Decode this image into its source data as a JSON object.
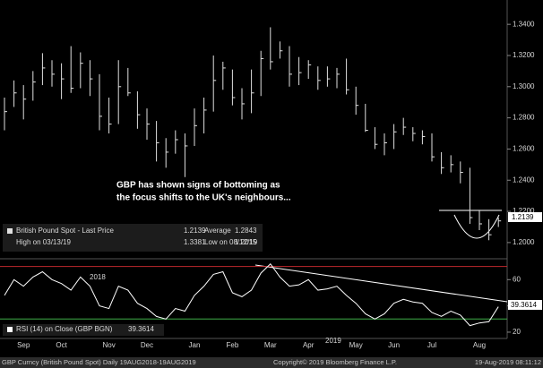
{
  "chart_data": [
    {
      "type": "ohlc",
      "categories": [
        null,
        null,
        "Sep",
        null,
        null,
        null,
        "Oct",
        null,
        null,
        null,
        null,
        "Nov",
        null,
        null,
        null,
        "Dec",
        null,
        null,
        null,
        null,
        "Jan",
        null,
        null,
        null,
        "Feb",
        null,
        null,
        null,
        "Mar",
        null,
        null,
        null,
        "Apr",
        null,
        null,
        null,
        null,
        "May",
        null,
        null,
        null,
        "Jun",
        null,
        null,
        null,
        "Jul",
        null,
        null,
        null,
        null,
        "Aug",
        null,
        null
      ],
      "high": [
        1.293,
        1.304,
        1.301,
        1.31,
        1.3215,
        1.317,
        1.315,
        1.326,
        1.322,
        1.317,
        1.308,
        1.293,
        1.317,
        1.312,
        1.297,
        1.286,
        1.278,
        1.267,
        1.272,
        1.27,
        1.286,
        1.293,
        1.32,
        1.316,
        1.311,
        1.299,
        1.311,
        1.323,
        1.3381,
        1.329,
        1.326,
        1.319,
        1.317,
        1.313,
        1.313,
        1.312,
        1.318,
        1.3,
        1.289,
        1.274,
        1.27,
        1.276,
        1.28,
        1.274,
        1.272,
        1.27,
        1.258,
        1.256,
        1.252,
        1.248,
        1.221,
        1.215,
        1.216
      ],
      "low": [
        1.272,
        1.287,
        1.279,
        1.291,
        1.301,
        1.3,
        1.292,
        1.296,
        1.299,
        1.294,
        1.272,
        1.27,
        1.276,
        1.294,
        1.273,
        1.266,
        1.252,
        1.248,
        1.257,
        1.242,
        1.262,
        1.27,
        1.284,
        1.298,
        1.288,
        1.279,
        1.283,
        1.294,
        1.311,
        1.318,
        1.3,
        1.301,
        1.305,
        1.298,
        1.3,
        1.299,
        1.295,
        1.282,
        1.271,
        1.26,
        1.256,
        1.26,
        1.269,
        1.265,
        1.263,
        1.252,
        1.244,
        1.245,
        1.238,
        1.212,
        1.208,
        1.2015,
        1.21
      ],
      "close": [
        1.284,
        1.296,
        1.292,
        1.303,
        1.312,
        1.308,
        1.305,
        1.299,
        1.315,
        1.305,
        1.281,
        1.276,
        1.3,
        1.296,
        1.282,
        1.276,
        1.264,
        1.258,
        1.266,
        1.262,
        1.275,
        1.285,
        1.304,
        1.312,
        1.293,
        1.289,
        1.296,
        1.318,
        1.316,
        1.323,
        1.308,
        1.309,
        1.314,
        1.304,
        1.305,
        1.308,
        1.298,
        1.288,
        1.272,
        1.263,
        1.264,
        1.271,
        1.274,
        1.27,
        1.268,
        1.255,
        1.248,
        1.25,
        1.245,
        1.216,
        1.212,
        1.205,
        1.2139
      ],
      "color": "#e0e0e0",
      "ylim": [
        1.1896,
        1.3556
      ],
      "yticks": [
        {
          "value": 1.2,
          "label": "1.2000"
        },
        {
          "value": 1.22,
          "label": "1.2200"
        },
        {
          "value": 1.24,
          "label": "1.2400"
        },
        {
          "value": 1.26,
          "label": "1.2600"
        },
        {
          "value": 1.28,
          "label": "1.2800"
        },
        {
          "value": 1.3,
          "label": "1.3000"
        },
        {
          "value": 1.32,
          "label": "1.3200"
        },
        {
          "value": 1.34,
          "label": "1.3400"
        }
      ],
      "legend": {
        "last_label": "British Pound Spot - Last Price",
        "high_label": "High on 03/13/19",
        "high": 1.3381,
        "average_label": "Average",
        "average": 1.2843,
        "low_label": "Low on 08/12/19",
        "low": 1.2015
      },
      "annotation": [
        "GBP has shown signs of bottoming as",
        "the focus shifts to the UK's neighbours..."
      ],
      "year_labels": [
        "2018",
        "2019"
      ]
    },
    {
      "type": "line",
      "name": "RSI (14)  on Close (GBP BGN)",
      "values": [
        48,
        60,
        55,
        62,
        66,
        60,
        57,
        52,
        62,
        55,
        40,
        38,
        55,
        52,
        42,
        38,
        32,
        30,
        38,
        36,
        48,
        55,
        64,
        66,
        50,
        47,
        52,
        65,
        72,
        62,
        55,
        56,
        60,
        52,
        53,
        55,
        48,
        42,
        34,
        30,
        34,
        42,
        45,
        43,
        42,
        35,
        32,
        36,
        33,
        25,
        27,
        28,
        39.3614
      ],
      "color": "#ffffff",
      "ylim": [
        15.2,
        75.9
      ],
      "yticks": [
        20,
        40,
        60
      ],
      "thresholds": [
        {
          "value": 70,
          "color": "#c0282d"
        },
        {
          "value": 30,
          "color": "#3fae49"
        }
      ]
    }
  ],
  "footer": [
    "GBP Curncy (British Pound Spot)  Daily 19AUG2018-19AUG2019",
    "Copyright© 2019 Bloomberg Finance L.P.",
    "19-Aug-2019 08:11:12"
  ]
}
